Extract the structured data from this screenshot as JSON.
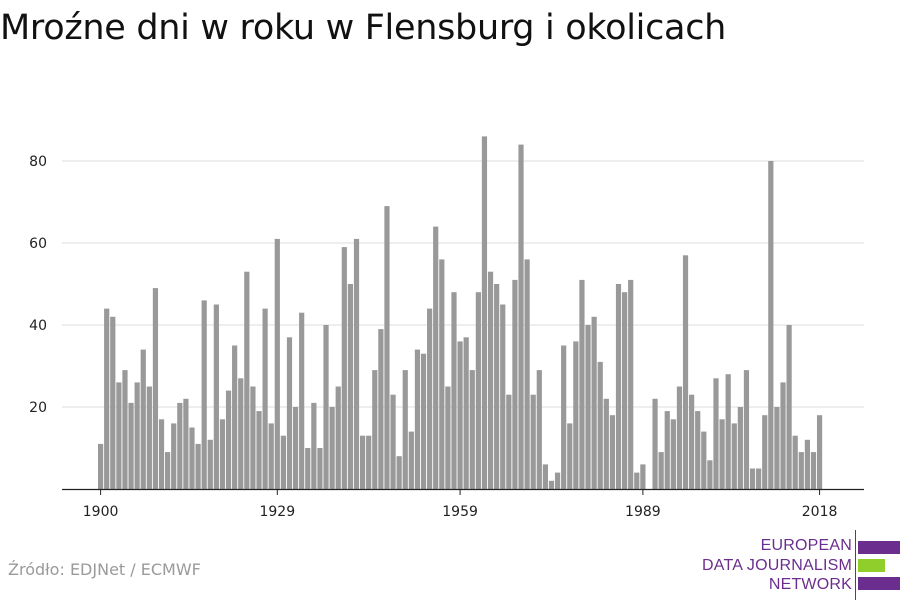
{
  "title": "Mroźne dni w roku w Flensburg i okolicach",
  "source": "Źródło: EDJNet / ECMWF",
  "logo": {
    "lines": [
      "EUROPEAN",
      "DATA JOURNALISM",
      "NETWORK"
    ],
    "colors": {
      "purple": "#6b2e8f",
      "green": "#8fce2b"
    }
  },
  "chart_data": {
    "type": "bar",
    "title": "Mroźne dni w roku w Flensburg i okolicach",
    "xlabel": "",
    "ylabel": "",
    "x_start": 1900,
    "x_end": 2018,
    "xticks": [
      1900,
      1929,
      1959,
      1989,
      2018
    ],
    "yticks": [
      20,
      40,
      60,
      80
    ],
    "ylim": [
      0,
      88
    ],
    "grid": true,
    "bar_color": "#999999",
    "values": [
      11,
      44,
      42,
      26,
      29,
      21,
      26,
      34,
      25,
      49,
      17,
      9,
      16,
      21,
      22,
      15,
      11,
      46,
      12,
      45,
      17,
      24,
      35,
      27,
      53,
      25,
      19,
      44,
      16,
      61,
      13,
      37,
      20,
      43,
      10,
      21,
      10,
      40,
      20,
      25,
      59,
      50,
      61,
      13,
      13,
      29,
      39,
      69,
      23,
      8,
      29,
      14,
      34,
      33,
      44,
      64,
      56,
      25,
      48,
      36,
      37,
      29,
      48,
      86,
      53,
      50,
      45,
      23,
      51,
      84,
      56,
      23,
      29,
      6,
      2,
      4,
      35,
      16,
      36,
      51,
      40,
      42,
      31,
      22,
      18,
      50,
      48,
      51,
      4,
      6,
      0,
      22,
      9,
      19,
      17,
      25,
      57,
      23,
      19,
      14,
      7,
      27,
      17,
      28,
      16,
      20,
      29,
      5,
      5,
      18,
      80,
      20,
      26,
      40,
      13,
      9,
      12,
      9,
      18
    ]
  }
}
